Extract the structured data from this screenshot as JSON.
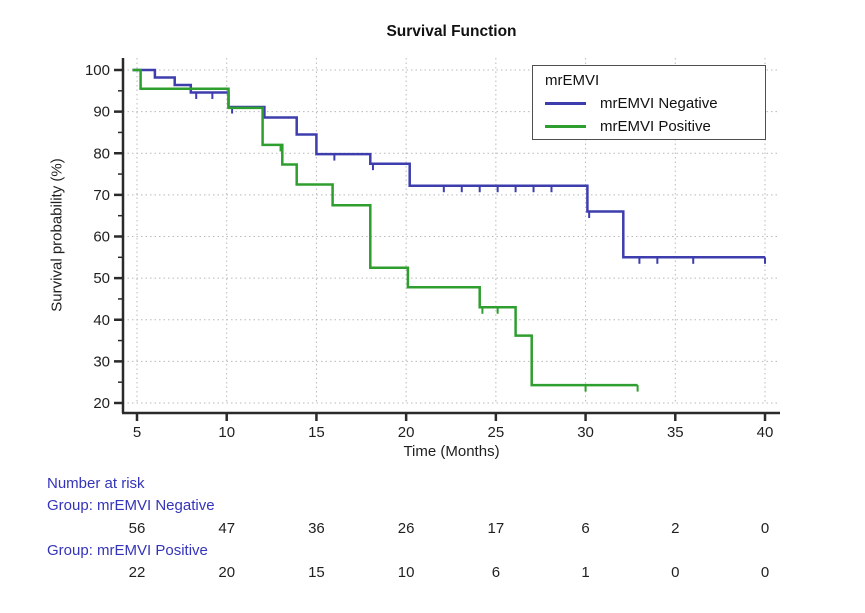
{
  "chart_data": {
    "type": "line",
    "subtype": "kaplan-meier-step-curves",
    "title": "Survival Function",
    "xlabel": "Time (Months)",
    "ylabel": "Survival probability (%)",
    "xlim": [
      4.2,
      40.8
    ],
    "ylim": [
      17.5,
      103
    ],
    "xticks": [
      5,
      10,
      15,
      20,
      25,
      30,
      35,
      40
    ],
    "yticks": [
      20,
      30,
      40,
      50,
      60,
      70,
      80,
      90,
      100
    ],
    "y_minor_ticks": [
      25,
      35,
      45,
      55,
      65,
      75,
      85,
      95
    ],
    "grid": "dotted",
    "legend_position": "top-right",
    "series": [
      {
        "name": "mrEMVI Negative",
        "color": "#3d3dae",
        "path": [
          [
            4.75,
            100
          ],
          [
            6,
            100
          ],
          [
            6,
            98.2
          ],
          [
            7.1,
            98.2
          ],
          [
            7.1,
            96.4
          ],
          [
            8,
            96.4
          ],
          [
            8,
            94.6
          ],
          [
            10.1,
            94.6
          ],
          [
            10.1,
            91.1
          ],
          [
            12.1,
            91.1
          ],
          [
            12.1,
            88.6
          ],
          [
            13.9,
            88.6
          ],
          [
            13.9,
            84.5
          ],
          [
            15,
            84.5
          ],
          [
            15,
            79.8
          ],
          [
            18,
            79.8
          ],
          [
            18,
            77.5
          ],
          [
            20.2,
            77.5
          ],
          [
            20.2,
            72.2
          ],
          [
            30.1,
            72.2
          ],
          [
            30.1,
            66
          ],
          [
            32.1,
            66
          ],
          [
            32.1,
            55
          ],
          [
            40,
            55
          ]
        ],
        "censor_marks": [
          [
            8.3,
            94.6
          ],
          [
            9.2,
            94.6
          ],
          [
            10.3,
            91.1
          ],
          [
            16,
            79.8
          ],
          [
            18.15,
            77.5
          ],
          [
            22.1,
            72.2
          ],
          [
            23.1,
            72.2
          ],
          [
            24.1,
            72.2
          ],
          [
            25.1,
            72.2
          ],
          [
            26.1,
            72.2
          ],
          [
            27.1,
            72.2
          ],
          [
            28.1,
            72.2
          ],
          [
            30.2,
            66
          ],
          [
            33,
            55
          ],
          [
            34,
            55
          ],
          [
            36,
            55
          ],
          [
            40,
            55
          ]
        ]
      },
      {
        "name": "mrEMVI Positive",
        "color": "#2e9e2e",
        "path": [
          [
            4.75,
            100
          ],
          [
            5.2,
            100
          ],
          [
            5.2,
            95.5
          ],
          [
            10.1,
            95.5
          ],
          [
            10.1,
            90.9
          ],
          [
            12,
            90.9
          ],
          [
            12,
            82
          ],
          [
            13.1,
            82
          ],
          [
            13.1,
            77.3
          ],
          [
            13.9,
            77.3
          ],
          [
            13.9,
            72.5
          ],
          [
            15.9,
            72.5
          ],
          [
            15.9,
            67.5
          ],
          [
            18,
            67.5
          ],
          [
            18,
            52.5
          ],
          [
            20.1,
            52.5
          ],
          [
            20.1,
            47.8
          ],
          [
            24.1,
            47.8
          ],
          [
            24.1,
            43
          ],
          [
            26.1,
            43
          ],
          [
            26.1,
            36.2
          ],
          [
            27,
            36.2
          ],
          [
            27,
            24.3
          ],
          [
            32.9,
            24.3
          ]
        ],
        "censor_marks": [
          [
            13,
            82
          ],
          [
            24.25,
            43
          ],
          [
            25.1,
            43
          ],
          [
            30,
            24.3
          ],
          [
            32.9,
            24.3
          ]
        ]
      }
    ]
  },
  "legend": {
    "title": "mrEMVI",
    "entries": [
      {
        "label": "mrEMVI Negative",
        "color": "#3d3dae"
      },
      {
        "label": "mrEMVI Positive",
        "color": "#2e9e2e"
      }
    ]
  },
  "risk_table": {
    "header": "Number at risk",
    "times": [
      5,
      10,
      15,
      20,
      25,
      30,
      35,
      40
    ],
    "groups": [
      {
        "label": "Group: mrEMVI Negative",
        "counts": [
          56,
          47,
          36,
          26,
          17,
          6,
          2,
          0
        ]
      },
      {
        "label": "Group: mrEMVI Positive",
        "counts": [
          22,
          20,
          15,
          10,
          6,
          1,
          0,
          0
        ]
      }
    ]
  },
  "colors": {
    "negative_line": "#3d3dae",
    "positive_line": "#2e9e2e",
    "risk_text": "#3434bb",
    "axis_text": "#1f1f1f",
    "axis_line": "#2a2a2a",
    "gridline": "#b9b9b9",
    "legend_border": "#4f4f4f",
    "background": "#ffffff"
  }
}
